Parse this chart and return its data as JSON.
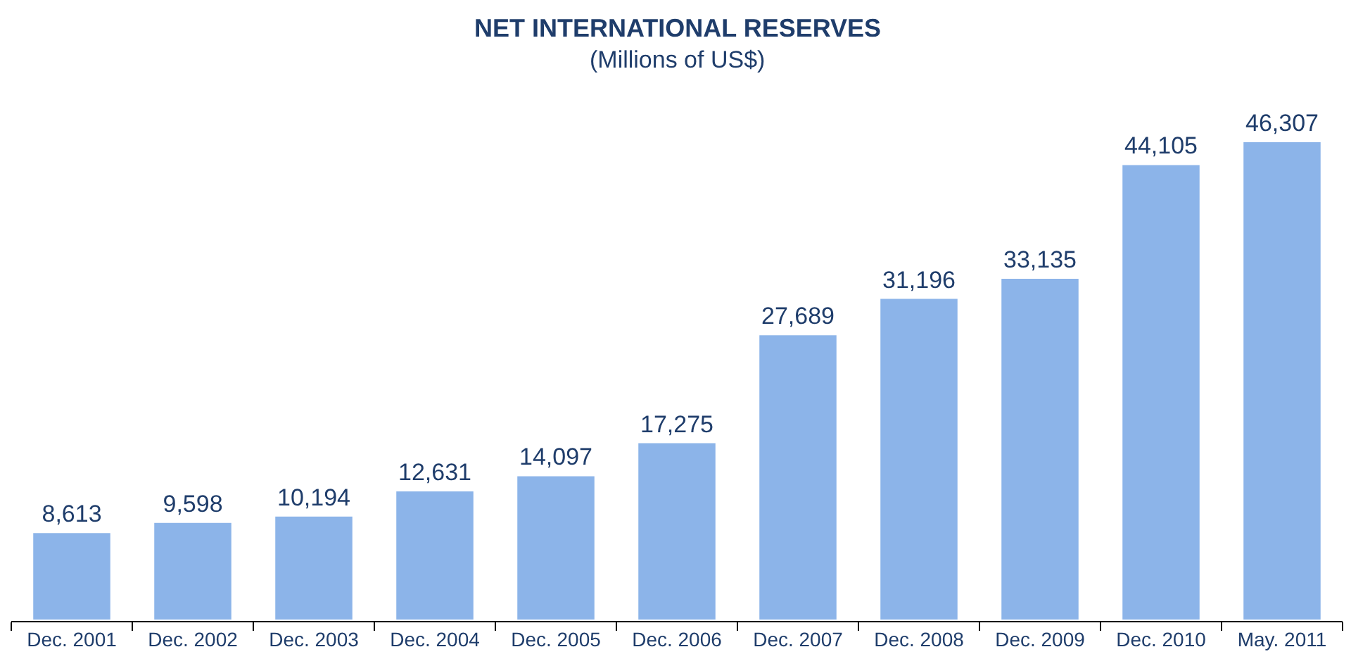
{
  "chart_data": {
    "type": "bar",
    "title": "NET INTERNATIONAL RESERVES",
    "subtitle": "(Millions of US$)",
    "categories": [
      "Dec. 2001",
      "Dec. 2002",
      "Dec. 2003",
      "Dec. 2004",
      "Dec. 2005",
      "Dec. 2006",
      "Dec. 2007",
      "Dec. 2008",
      "Dec. 2009",
      "Dec. 2010",
      "May. 2011"
    ],
    "values": [
      8613,
      9598,
      10194,
      12631,
      14097,
      17275,
      27689,
      31196,
      33135,
      44105,
      46307
    ],
    "value_labels": [
      "8,613",
      "9,598",
      "10,194",
      "12,631",
      "14,097",
      "17,275",
      "27,689",
      "31,196",
      "33,135",
      "44,105",
      "46,307"
    ],
    "color": "#8cb4e9"
  }
}
